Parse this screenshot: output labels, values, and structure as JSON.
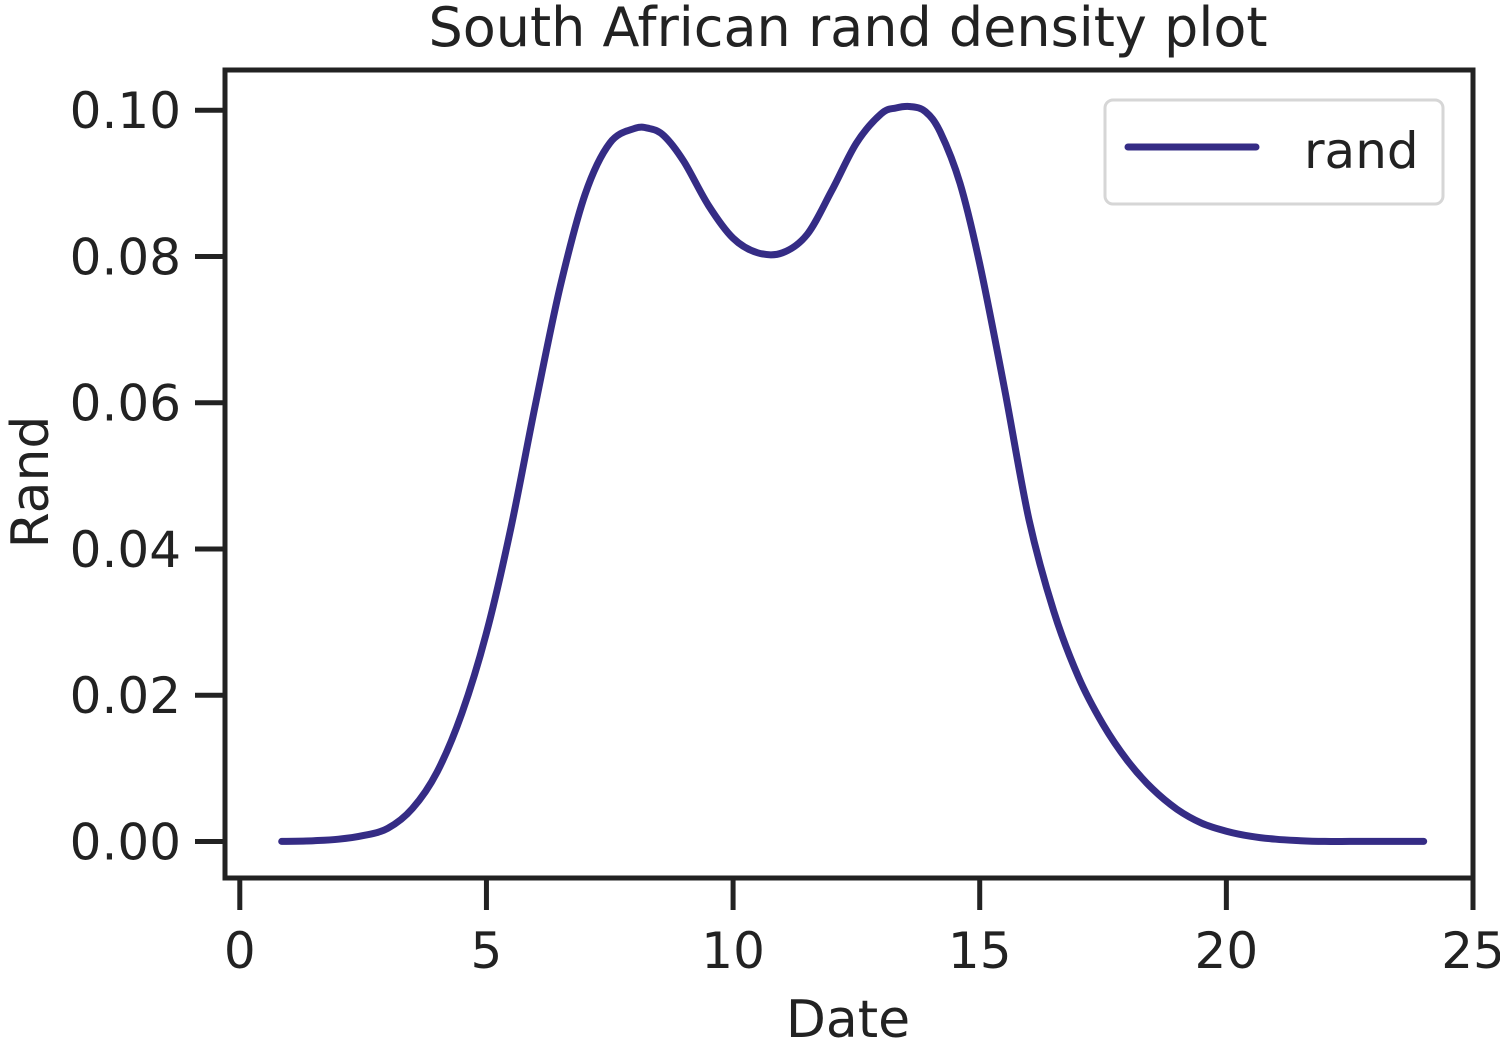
{
  "chart_data": {
    "type": "line",
    "title": "South African rand density plot",
    "xlabel": "Date",
    "ylabel": "Rand",
    "xlim": [
      -0.3,
      25
    ],
    "ylim": [
      -0.005,
      0.1055
    ],
    "xticks": [
      0,
      5,
      10,
      15,
      20,
      25
    ],
    "xtick_labels": [
      "0",
      "5",
      "10",
      "15",
      "20",
      "25"
    ],
    "yticks": [
      0.0,
      0.02,
      0.04,
      0.06,
      0.08,
      0.1
    ],
    "ytick_labels": [
      "0.00",
      "0.02",
      "0.04",
      "0.06",
      "0.08",
      "0.10"
    ],
    "grid": false,
    "legend_position": "top-right",
    "series": [
      {
        "name": "rand",
        "color": "#352c85",
        "x": [
          0.85,
          1.5,
          2.0,
          2.5,
          3.0,
          3.5,
          4.0,
          4.5,
          5.0,
          5.5,
          6.0,
          6.5,
          7.0,
          7.5,
          8.0,
          8.3,
          8.6,
          9.0,
          9.5,
          10.0,
          10.5,
          11.0,
          11.5,
          12.0,
          12.5,
          13.0,
          13.3,
          13.6,
          13.9,
          14.2,
          14.6,
          15.0,
          15.5,
          16.0,
          16.5,
          17.0,
          17.5,
          18.0,
          18.5,
          19.0,
          19.5,
          20.0,
          20.5,
          21.0,
          21.5,
          22.0,
          22.5,
          23.0,
          23.5,
          24.0
        ],
        "values": [
          0.0,
          0.0001,
          0.0003,
          0.0008,
          0.0018,
          0.0045,
          0.0095,
          0.0175,
          0.0285,
          0.043,
          0.06,
          0.076,
          0.0885,
          0.0955,
          0.0975,
          0.0975,
          0.0965,
          0.093,
          0.087,
          0.0825,
          0.0805,
          0.0805,
          0.083,
          0.089,
          0.0955,
          0.0995,
          0.1003,
          0.1005,
          0.0998,
          0.097,
          0.09,
          0.079,
          0.062,
          0.044,
          0.0315,
          0.0225,
          0.016,
          0.011,
          0.0072,
          0.0044,
          0.0025,
          0.0014,
          0.0007,
          0.0003,
          0.0001,
          0.0,
          0.0,
          0.0,
          0.0,
          0.0
        ]
      }
    ]
  }
}
